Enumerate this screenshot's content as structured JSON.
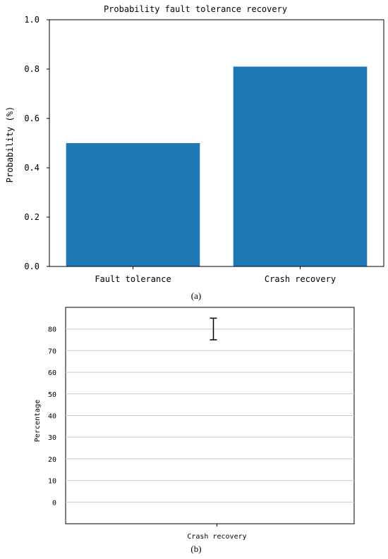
{
  "chart_data": [
    {
      "type": "bar",
      "title": "Probability fault tolerance recovery",
      "ylabel": "Probability (%)",
      "xlabel": "",
      "categories": [
        "Fault tolerance",
        "Crash recovery"
      ],
      "values": [
        0.5,
        0.81
      ],
      "ylim": [
        0,
        1.0
      ],
      "yticks": [
        "0.0",
        "0.2",
        "0.4",
        "0.6",
        "0.8",
        "1.0"
      ],
      "bar_color": "#1f77b4",
      "grid": false,
      "caption": "(a)"
    },
    {
      "type": "bar",
      "title": "",
      "ylabel": "Percentage",
      "xlabel": "",
      "categories": [
        "Crash recovery"
      ],
      "values": [
        80
      ],
      "error": [
        5
      ],
      "ylim": [
        -10,
        90
      ],
      "yticks": [
        "0",
        "10",
        "20",
        "30",
        "40",
        "50",
        "60",
        "70",
        "80"
      ],
      "grid": true,
      "caption": "(b)"
    }
  ]
}
